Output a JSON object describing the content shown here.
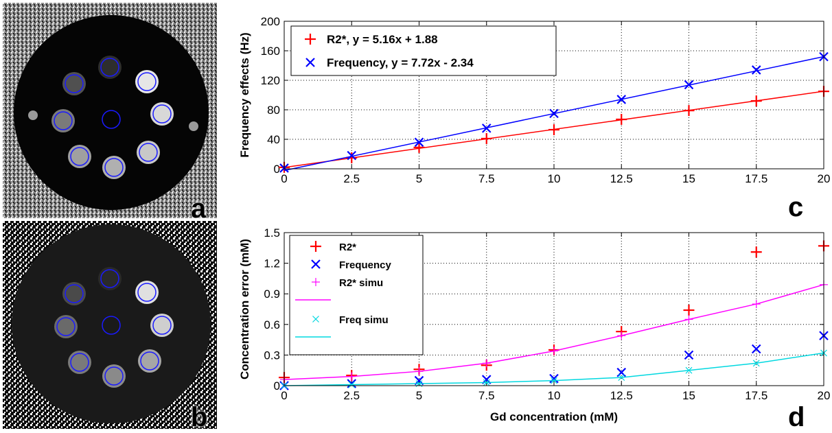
{
  "panels": {
    "a": "a",
    "b": "b",
    "c": "c",
    "d": "d"
  },
  "colors": {
    "r2": "#ff0000",
    "freq": "#0000ff",
    "r2_simu": "#ff00ff",
    "freq_simu": "#00d8e0",
    "circle_outline": "#1a1aff"
  },
  "chart_data": [
    {
      "type": "scatter",
      "panel": "c",
      "xlabel": "",
      "ylabel": "Frequency effects (Hz)",
      "xlim": [
        0,
        20
      ],
      "ylim": [
        0,
        200
      ],
      "x_ticks": [
        "0",
        "2.5",
        "5",
        "7.5",
        "10",
        "12.5",
        "15",
        "17.5",
        "20"
      ],
      "y_ticks": [
        "0",
        "40",
        "80",
        "120",
        "160",
        "200"
      ],
      "grid": true,
      "legend_position": "top-left",
      "series": [
        {
          "name": "R2*, y = 5.16x + 1.88",
          "marker": "plus",
          "color": "#ff0000",
          "x": [
            0,
            2.5,
            5,
            7.5,
            10,
            12.5,
            15,
            17.5,
            20
          ],
          "y": [
            2,
            15,
            29,
            41,
            53,
            67,
            79,
            92,
            105
          ],
          "fit": {
            "slope": 5.16,
            "intercept": 1.88
          }
        },
        {
          "name": "Frequency, y = 7.72x - 2.34",
          "marker": "x",
          "color": "#0000ff",
          "x": [
            0,
            2.5,
            5,
            7.5,
            10,
            12.5,
            15,
            17.5,
            20
          ],
          "y": [
            1,
            18,
            36,
            55,
            75,
            94,
            114,
            134,
            152
          ],
          "fit": {
            "slope": 7.72,
            "intercept": -2.34
          }
        }
      ]
    },
    {
      "type": "scatter",
      "panel": "d",
      "xlabel": "Gd concentration (mM)",
      "ylabel": "Concentration error (mM)",
      "xlim": [
        0,
        20
      ],
      "ylim": [
        0,
        1.5
      ],
      "x_ticks": [
        "0",
        "2.5",
        "5",
        "7.5",
        "10",
        "12.5",
        "15",
        "17.5",
        "20"
      ],
      "y_ticks": [
        "0",
        "0.3",
        "0.6",
        "0.9",
        "1.2",
        "1.5"
      ],
      "grid": true,
      "legend_position": "top-left",
      "series": [
        {
          "name": "R2*",
          "marker": "plus",
          "color": "#ff0000",
          "x": [
            0,
            2.5,
            5,
            7.5,
            10,
            12.5,
            15,
            17.5,
            20
          ],
          "y": [
            0.08,
            0.1,
            0.16,
            0.2,
            0.35,
            0.53,
            0.74,
            1.31,
            1.37
          ]
        },
        {
          "name": "Frequency",
          "marker": "x",
          "color": "#0000ff",
          "x": [
            0,
            2.5,
            5,
            7.5,
            10,
            12.5,
            15,
            17.5,
            20
          ],
          "y": [
            0.0,
            0.02,
            0.05,
            0.06,
            0.07,
            0.13,
            0.3,
            0.36,
            0.49
          ]
        },
        {
          "name": "R2* simu",
          "marker": "plus-line",
          "color": "#ff00ff",
          "x": [
            0,
            2.5,
            5,
            7.5,
            10,
            12.5,
            15,
            17.5,
            20
          ],
          "y": [
            0.06,
            0.09,
            0.14,
            0.22,
            0.34,
            0.49,
            0.65,
            0.8,
            0.99
          ]
        },
        {
          "name": "Freq simu",
          "marker": "x-line",
          "color": "#00d8e0",
          "x": [
            0,
            2.5,
            5,
            7.5,
            10,
            12.5,
            15,
            17.5,
            20
          ],
          "y": [
            0.0,
            0.01,
            0.02,
            0.03,
            0.05,
            0.08,
            0.15,
            0.22,
            0.32
          ]
        }
      ]
    }
  ]
}
